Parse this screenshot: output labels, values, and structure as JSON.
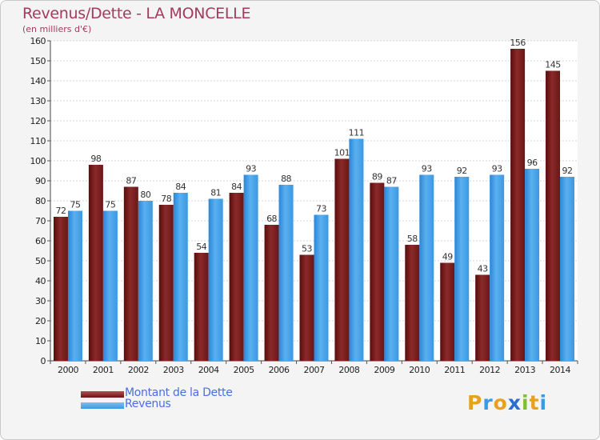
{
  "header": {
    "title": "Revenus/Dette - LA MONCELLE",
    "subtitle": "(en milliers d'€)"
  },
  "chart_data": {
    "type": "bar",
    "categories": [
      "2000",
      "2001",
      "2002",
      "2003",
      "2004",
      "2005",
      "2006",
      "2007",
      "2008",
      "2009",
      "2010",
      "2011",
      "2012",
      "2013",
      "2014"
    ],
    "series": [
      {
        "name": "Montant de la Dette",
        "color": "#7a1c1c",
        "values": [
          72,
          98,
          87,
          78,
          54,
          84,
          68,
          53,
          101,
          89,
          58,
          49,
          43,
          156,
          145
        ]
      },
      {
        "name": "Revenus",
        "color": "#3b9ae6",
        "values": [
          75,
          75,
          80,
          84,
          81,
          93,
          88,
          73,
          111,
          87,
          93,
          92,
          93,
          96,
          92
        ]
      }
    ],
    "ylim": [
      0,
      160
    ],
    "yticks": [
      0,
      10,
      20,
      30,
      40,
      50,
      60,
      70,
      80,
      90,
      100,
      110,
      120,
      130,
      140,
      150,
      160
    ],
    "grid": true,
    "legend": "bottom-left"
  },
  "legend": {
    "items": [
      {
        "label": "Montant de la Dette",
        "color": "#6a1414"
      },
      {
        "label": "Revenus",
        "color": "#3b9ae6"
      }
    ]
  },
  "logo": {
    "letters": [
      "P",
      "r",
      "o",
      "x",
      "i",
      "t",
      "i"
    ],
    "colors": [
      "#e8a020",
      "#3b9ae6",
      "#e8a020",
      "#2a6fd0",
      "#7cc030",
      "#e8a020",
      "#3b9ae6"
    ]
  }
}
